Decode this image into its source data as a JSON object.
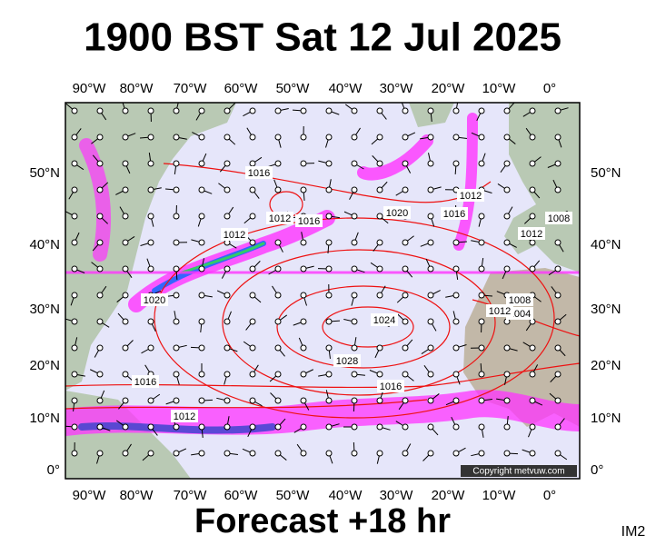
{
  "title": "1900 BST Sat 12 Jul 2025",
  "lon_labels": [
    "90°W",
    "80°W",
    "70°W",
    "60°W",
    "50°W",
    "40°W",
    "30°W",
    "20°W",
    "10°W",
    "0°"
  ],
  "lat_labels": [
    "50°N",
    "40°N",
    "30°N",
    "20°N",
    "10°N",
    "0°"
  ],
  "isobar_labels": [
    "1016",
    "1012",
    "1016",
    "1020",
    "1016",
    "1012",
    "1012",
    "1008",
    "1012",
    "1020",
    "1024",
    "1028",
    "1016",
    "1016",
    "1012",
    "1004",
    "1008",
    "1012"
  ],
  "copyright": "Copyright metvuw.com",
  "footer": "Forecast +18 hr",
  "code": "IM2"
}
